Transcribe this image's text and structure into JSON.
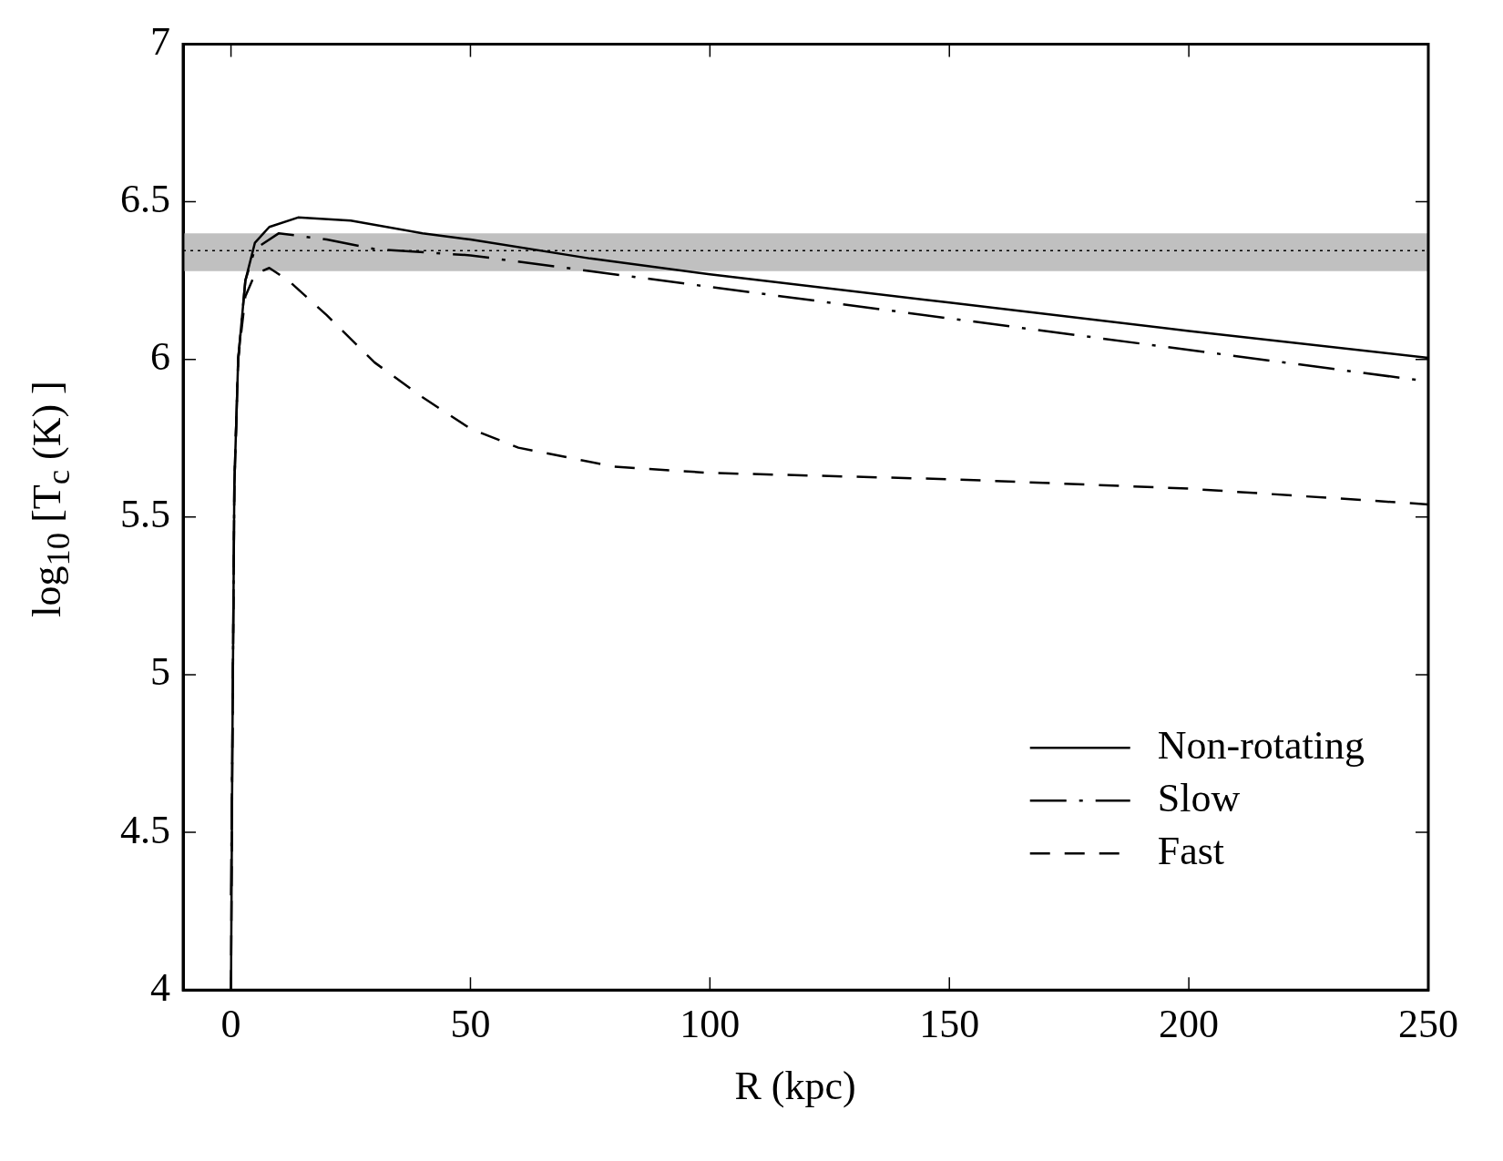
{
  "chart_data": {
    "type": "line",
    "xlabel": "R (kpc)",
    "ylabel": "log$_{10}$ [T$_{c}$ (K) ]",
    "xlim": [
      -10,
      250
    ],
    "xticks": [
      0,
      50,
      100,
      150,
      200,
      250
    ],
    "ylim": [
      4,
      7
    ],
    "yticks": [
      4,
      4.5,
      5,
      5.5,
      6,
      6.5,
      7
    ],
    "grid": false,
    "legend": "bottom right",
    "marker": "none",
    "bands": [
      {
        "axis": "y",
        "from": 6.28,
        "to": 6.4,
        "color": "#c0c0c0"
      }
    ],
    "ref_lines": [
      {
        "axis": "y",
        "value": 6.345,
        "color": "#000000",
        "line_style": "dotted"
      }
    ],
    "series": [
      {
        "name": "Non-rotating",
        "color": "#000000",
        "line_style": "solid",
        "x": [
          0,
          0.3,
          0.7,
          1.5,
          3,
          5,
          8,
          14,
          25,
          40,
          50,
          75,
          100,
          150,
          200,
          250
        ],
        "values": [
          4,
          4.8,
          5.6,
          6.0,
          6.25,
          6.37,
          6.42,
          6.45,
          6.44,
          6.4,
          6.38,
          6.32,
          6.27,
          6.18,
          6.09,
          6.005
        ]
      },
      {
        "name": "Slow",
        "color": "#000000",
        "line_style": "dashdot",
        "x": [
          0,
          0.3,
          0.7,
          1.5,
          3,
          5,
          10,
          20,
          30,
          50,
          75,
          100,
          150,
          200,
          250
        ],
        "values": [
          4.3,
          4.8,
          5.6,
          6.0,
          6.25,
          6.35,
          6.4,
          6.38,
          6.35,
          6.33,
          6.28,
          6.23,
          6.13,
          6.03,
          5.93
        ]
      },
      {
        "name": "Fast",
        "color": "#000000",
        "line_style": "dashed",
        "x": [
          0,
          0.3,
          0.7,
          1.5,
          3,
          5,
          8,
          12,
          20,
          30,
          40,
          50,
          60,
          80,
          100,
          150,
          200,
          250
        ],
        "values": [
          4,
          4.8,
          5.6,
          6.0,
          6.2,
          6.27,
          6.29,
          6.25,
          6.14,
          5.99,
          5.88,
          5.78,
          5.72,
          5.66,
          5.64,
          5.62,
          5.59,
          5.54
        ]
      }
    ]
  }
}
